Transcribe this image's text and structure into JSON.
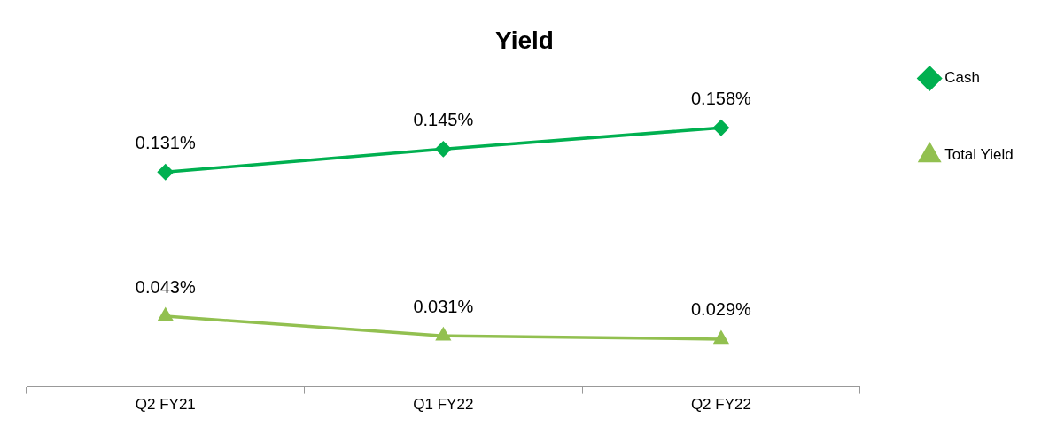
{
  "chart_data": {
    "type": "line",
    "title": "Yield",
    "categories": [
      "Q2 FY21",
      "Q1 FY22",
      "Q2 FY22"
    ],
    "series": [
      {
        "name": "Cash",
        "color": "#00b050",
        "marker": "diamond",
        "values": [
          0.131,
          0.145,
          0.158
        ],
        "value_labels": [
          "0.131%",
          "0.145%",
          "0.158%"
        ]
      },
      {
        "name": "Total Yield",
        "color": "#92c050",
        "marker": "triangle",
        "values": [
          0.043,
          0.031,
          0.029
        ],
        "value_labels": [
          "0.043%",
          "0.031%",
          "0.029%"
        ]
      }
    ],
    "grid": false,
    "legend": "right",
    "line_style": "solid"
  }
}
